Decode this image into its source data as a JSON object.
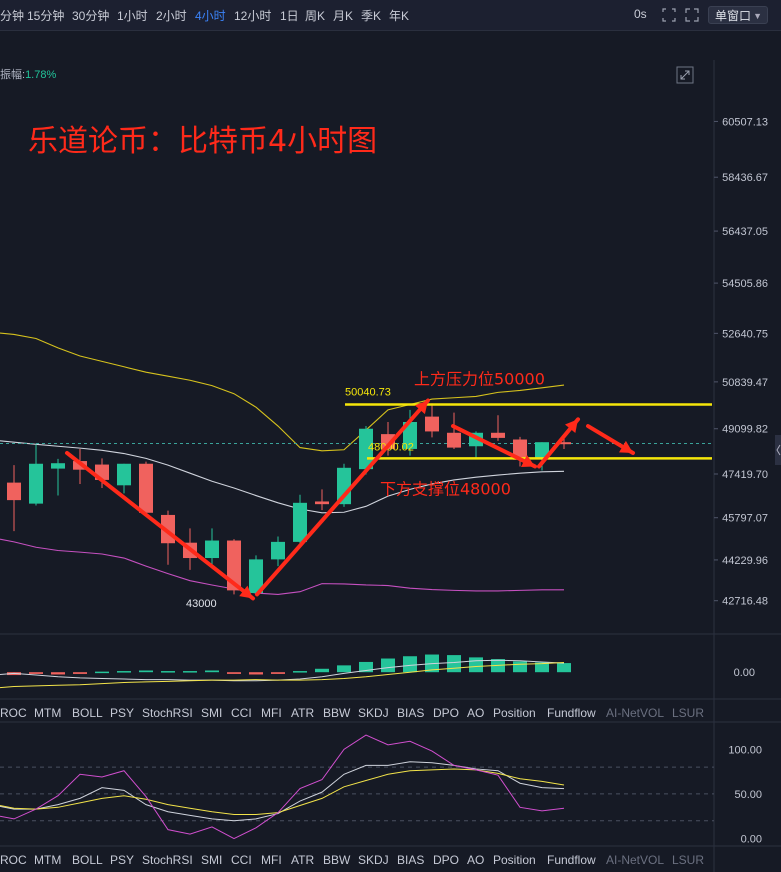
{
  "toolbar": {
    "timeframes": [
      "分钟",
      "15分钟",
      "30分钟",
      "1小时",
      "2小时",
      "4小时",
      "12小时",
      "1日",
      "周K",
      "月K",
      "季K",
      "年K"
    ],
    "active": "4小时",
    "countdown": "0s",
    "window_mode": "单窗口"
  },
  "amplitude": {
    "label": "振幅:",
    "value": "1.78%"
  },
  "colors": {
    "up": "#25c49a",
    "down": "#f0625e",
    "annotation": "#ff2a1a",
    "level": "#f5e60a",
    "boll_mid": "#cfd3dc",
    "boll_upper": "#d6c21d",
    "boll_lower": "#c550c0"
  },
  "chart_data": {
    "type": "candlestick",
    "title": "乐道论币：比特币4小时图",
    "price_axis": {
      "ticks": [
        "60507.13",
        "58436.67",
        "56437.05",
        "54505.86",
        "52640.75",
        "50839.47",
        "49099.82",
        "47419.70",
        "45797.07",
        "44229.96",
        "42716.48"
      ],
      "ylim": [
        42000,
        61600
      ]
    },
    "candles": [
      {
        "o": 47100,
        "h": 47750,
        "l": 45300,
        "c": 46450
      },
      {
        "o": 46320,
        "h": 48520,
        "l": 46250,
        "c": 47800
      },
      {
        "o": 47620,
        "h": 47980,
        "l": 46620,
        "c": 47820
      },
      {
        "o": 47900,
        "h": 48350,
        "l": 47050,
        "c": 47580
      },
      {
        "o": 47770,
        "h": 48000,
        "l": 46900,
        "c": 47200
      },
      {
        "o": 47000,
        "h": 47800,
        "l": 46700,
        "c": 47800
      },
      {
        "o": 47800,
        "h": 47880,
        "l": 45900,
        "c": 45980
      },
      {
        "o": 45900,
        "h": 46060,
        "l": 44050,
        "c": 44850
      },
      {
        "o": 44870,
        "h": 45400,
        "l": 43860,
        "c": 44300
      },
      {
        "o": 44300,
        "h": 45400,
        "l": 43950,
        "c": 44950
      },
      {
        "o": 44950,
        "h": 45000,
        "l": 42950,
        "c": 43100
      },
      {
        "o": 43000,
        "h": 44400,
        "l": 42950,
        "c": 44250
      },
      {
        "o": 44250,
        "h": 45100,
        "l": 44000,
        "c": 44900
      },
      {
        "o": 44900,
        "h": 46650,
        "l": 44700,
        "c": 46350
      },
      {
        "o": 46400,
        "h": 46850,
        "l": 46080,
        "c": 46300
      },
      {
        "o": 46300,
        "h": 47800,
        "l": 46200,
        "c": 47650
      },
      {
        "o": 47600,
        "h": 49200,
        "l": 47400,
        "c": 49100
      },
      {
        "o": 48900,
        "h": 49350,
        "l": 48100,
        "c": 48350
      },
      {
        "o": 48350,
        "h": 49800,
        "l": 48100,
        "c": 49350
      },
      {
        "o": 49550,
        "h": 50040.73,
        "l": 48780,
        "c": 49000
      },
      {
        "o": 48950,
        "h": 49700,
        "l": 48350,
        "c": 48400
      },
      {
        "o": 48450,
        "h": 49000,
        "l": 48000,
        "c": 48950
      },
      {
        "o": 48950,
        "h": 49600,
        "l": 48650,
        "c": 48760
      },
      {
        "o": 48700,
        "h": 48800,
        "l": 47700,
        "c": 47950
      },
      {
        "o": 48000,
        "h": 48600,
        "l": 47550,
        "c": 48600
      },
      {
        "o": 48600,
        "h": 48800,
        "l": 48350,
        "c": 48550
      }
    ],
    "boll_upper": [
      52600,
      52450,
      52100,
      51800,
      51600,
      51400,
      51200,
      51050,
      50900,
      50700,
      50400,
      49900,
      49200,
      48400,
      48280,
      48320,
      49050,
      49800,
      50000,
      50200,
      50250,
      50300,
      50450,
      50520,
      50620,
      50720
    ],
    "boll_mid": [
      48600,
      48520,
      48450,
      48380,
      48300,
      48180,
      48000,
      47750,
      47450,
      47150,
      46900,
      46620,
      46350,
      46120,
      45980,
      46000,
      46220,
      46600,
      46850,
      47050,
      47200,
      47300,
      47380,
      47450,
      47500,
      47520
    ],
    "boll_lower": [
      44900,
      44700,
      44580,
      44520,
      44450,
      44300,
      44000,
      43720,
      43460,
      43300,
      43150,
      43000,
      42950,
      43050,
      43350,
      43340,
      43300,
      43280,
      43180,
      43130,
      43100,
      43080,
      43080,
      43100,
      43120,
      43120
    ],
    "price_labels": [
      {
        "text": "50040.73",
        "price": 50040.73,
        "candle": 19
      },
      {
        "text": "48000.02",
        "price": 48000.02,
        "candle": 24
      },
      {
        "text": "43000",
        "price": 43000,
        "candle": 10
      }
    ],
    "levels": [
      {
        "name": "上方压力位50000",
        "price": 50000
      },
      {
        "name": "下方支撑位48000",
        "price": 48000
      }
    ],
    "current_price": 48550,
    "macd": {
      "hist": [
        -0.5,
        -0.3,
        -0.4,
        -0.3,
        0.1,
        0.2,
        0.3,
        0.2,
        0.2,
        0.3,
        -0.3,
        -0.4,
        -0.3,
        0.2,
        0.6,
        1.2,
        1.8,
        2.4,
        2.8,
        3.1,
        3.0,
        2.6,
        2.3,
        1.9,
        1.7,
        1.6
      ],
      "dif": [
        -0.2,
        -0.5,
        -0.8,
        -1.0,
        -1.1,
        -1.2,
        -1.3,
        -1.3,
        -1.4,
        -1.4,
        -1.5,
        -1.5,
        -1.4,
        -1.2,
        -0.8,
        -0.2,
        0.3,
        0.8,
        1.2,
        1.5,
        1.7,
        2.0,
        2.1,
        2.0,
        1.8,
        1.6
      ],
      "dea": [
        -2.5,
        -2.4,
        -2.3,
        -2.2,
        -2.0,
        -1.8,
        -1.7,
        -1.6,
        -1.5,
        -1.4,
        -1.4,
        -1.3,
        -1.4,
        -1.4,
        -1.3,
        -1.1,
        -0.8,
        -0.4,
        0.0,
        0.4,
        0.7,
        1.0,
        1.2,
        1.4,
        1.5,
        1.7
      ],
      "tick": "0.00",
      "ylim": [
        -4,
        6
      ]
    },
    "kdj": {
      "k": [
        33,
        33,
        38,
        45,
        57,
        54,
        38,
        30,
        26,
        22,
        20,
        22,
        28,
        42,
        52,
        72,
        82,
        82,
        86,
        85,
        82,
        78,
        76,
        62,
        57,
        56
      ],
      "d": [
        34,
        33,
        35,
        40,
        45,
        48,
        44,
        38,
        34,
        30,
        27,
        27,
        29,
        37,
        45,
        58,
        65,
        72,
        76,
        77,
        78,
        77,
        73,
        67,
        64,
        60
      ],
      "j": [
        22,
        33,
        48,
        72,
        69,
        76,
        47,
        10,
        5,
        13,
        0,
        12,
        29,
        56,
        66,
        100,
        116,
        105,
        109,
        98,
        82,
        77,
        71,
        35,
        31,
        34
      ],
      "ticks": [
        "100.00",
        "50.00",
        "0.00"
      ],
      "ylim": [
        -5,
        125
      ]
    }
  },
  "annotations": {
    "resistance": "上方压力位50000",
    "support": "下方支撑位48000"
  },
  "indicator_tabs": [
    "ROC",
    "MTM",
    "BOLL",
    "PSY",
    "StochRSI",
    "SMI",
    "CCI",
    "MFI",
    "ATR",
    "BBW",
    "SKDJ",
    "BIAS",
    "DPO",
    "AO",
    "Position",
    "Fundflow",
    "AI-NetVOL",
    "LSUR"
  ],
  "indicator_tabs_dim": [
    "AI-NetVOL",
    "LSUR"
  ]
}
